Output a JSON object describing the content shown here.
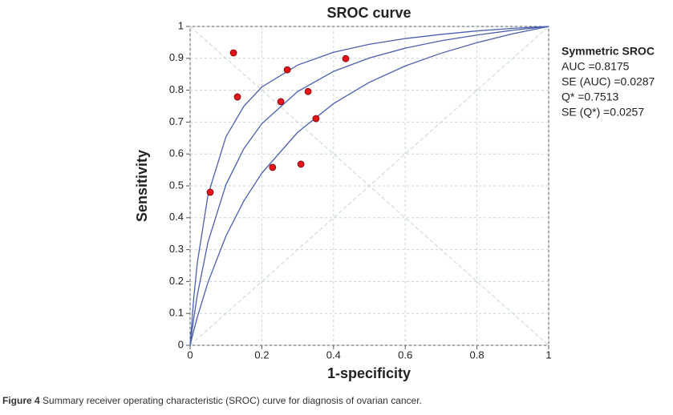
{
  "chart_data": {
    "type": "sroc",
    "title": "SROC curve",
    "x_label": "1-specificity",
    "y_label": "Sensitivity",
    "xlim": [
      0,
      1
    ],
    "ylim": [
      0,
      1
    ],
    "xticks": [
      0,
      0.2,
      0.4,
      0.6,
      0.8,
      1
    ],
    "yticks": [
      0,
      0.1,
      0.2,
      0.3,
      0.4,
      0.5,
      0.6,
      0.7,
      0.8,
      0.9,
      1
    ],
    "grid": true,
    "series": [
      {
        "kind": "line",
        "color": "#4a5fb0",
        "x": [
          0,
          0.01,
          0.02,
          0.05,
          0.1,
          0.15,
          0.2,
          0.3,
          0.4,
          0.5,
          0.6,
          0.7,
          0.8,
          0.9,
          1
        ],
        "values": [
          0,
          0.147,
          0.258,
          0.472,
          0.654,
          0.75,
          0.81,
          0.879,
          0.919,
          0.944,
          0.962,
          0.975,
          0.986,
          0.994,
          1
        ]
      },
      {
        "kind": "line",
        "color": "#4a5fb0",
        "x": [
          0,
          0.01,
          0.02,
          0.05,
          0.1,
          0.15,
          0.2,
          0.3,
          0.4,
          0.5,
          0.6,
          0.7,
          0.8,
          0.9,
          1
        ],
        "values": [
          0,
          0.084,
          0.157,
          0.324,
          0.504,
          0.617,
          0.695,
          0.796,
          0.859,
          0.901,
          0.932,
          0.955,
          0.973,
          0.988,
          1
        ]
      },
      {
        "kind": "line",
        "color": "#4a5fb0",
        "x": [
          0,
          0.01,
          0.02,
          0.05,
          0.1,
          0.15,
          0.2,
          0.3,
          0.4,
          0.5,
          0.6,
          0.7,
          0.8,
          0.9,
          1
        ],
        "values": [
          0,
          0.045,
          0.088,
          0.198,
          0.343,
          0.453,
          0.54,
          0.668,
          0.758,
          0.825,
          0.876,
          0.916,
          0.949,
          0.977,
          1
        ]
      },
      {
        "kind": "scatter",
        "color": "#e0161b",
        "x": [
          0.121,
          0.132,
          0.056,
          0.253,
          0.271,
          0.329,
          0.351,
          0.434,
          0.23,
          0.309
        ],
        "values": [
          0.917,
          0.779,
          0.48,
          0.764,
          0.864,
          0.796,
          0.711,
          0.899,
          0.558,
          0.568
        ]
      }
    ],
    "annotations": [
      "Symmetric SROC",
      "AUC =0.8175",
      "SE (AUC) =0.0287",
      "Q* =0.7513",
      "SE (Q*) =0.0257"
    ],
    "caption": {
      "label": "Figure 4",
      "text": "Summary receiver operating characteristic (SROC) curve for diagnosis of ovarian cancer."
    }
  }
}
